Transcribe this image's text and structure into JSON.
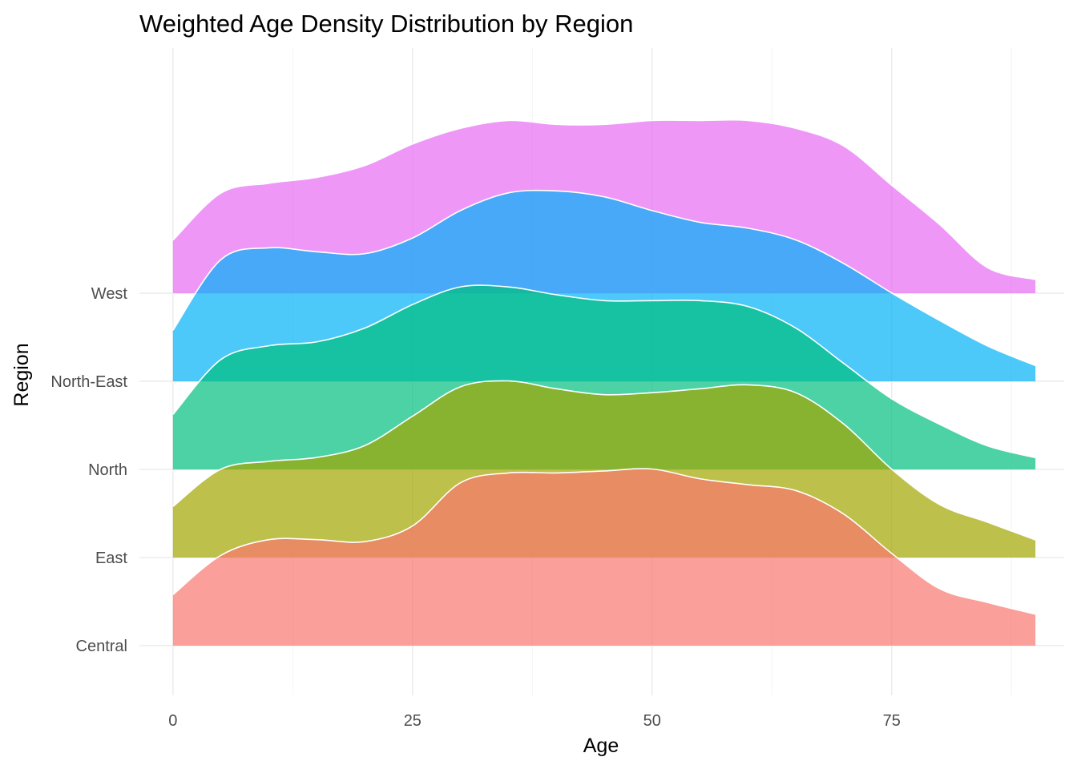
{
  "chart_data": {
    "type": "area",
    "subtype": "ridgeline",
    "title": "Weighted Age Density Distribution by Region",
    "xlabel": "Age",
    "ylabel": "Region",
    "xlim": [
      -3.5,
      93
    ],
    "x_ticks": [
      0,
      25,
      50,
      75
    ],
    "x_tick_labels": [
      "0",
      "25",
      "50",
      "75"
    ],
    "categories": [
      "Central",
      "East",
      "North",
      "North-East",
      "West"
    ],
    "grid": true,
    "legend": "none",
    "series": [
      {
        "name": "Central",
        "color": "#F8766D",
        "x": [
          0,
          5,
          10,
          15,
          20,
          25,
          30,
          35,
          40,
          45,
          50,
          55,
          60,
          65,
          70,
          75,
          80,
          85,
          90
        ],
        "y": [
          0.26,
          0.46,
          0.54,
          0.54,
          0.53,
          0.61,
          0.83,
          0.88,
          0.88,
          0.89,
          0.9,
          0.85,
          0.82,
          0.79,
          0.67,
          0.47,
          0.29,
          0.22,
          0.16
        ]
      },
      {
        "name": "East",
        "color": "#A3A500",
        "x": [
          0,
          5,
          10,
          15,
          20,
          25,
          30,
          35,
          40,
          45,
          50,
          55,
          60,
          65,
          70,
          75,
          80,
          85,
          90
        ],
        "y": [
          0.26,
          0.45,
          0.49,
          0.51,
          0.57,
          0.72,
          0.87,
          0.9,
          0.86,
          0.83,
          0.84,
          0.86,
          0.88,
          0.84,
          0.68,
          0.45,
          0.27,
          0.18,
          0.09
        ]
      },
      {
        "name": "North",
        "color": "#00BF7D",
        "x": [
          0,
          5,
          10,
          15,
          20,
          25,
          30,
          35,
          40,
          45,
          50,
          55,
          60,
          65,
          70,
          75,
          80,
          85,
          90
        ],
        "y": [
          0.28,
          0.56,
          0.63,
          0.65,
          0.72,
          0.84,
          0.93,
          0.93,
          0.89,
          0.86,
          0.86,
          0.86,
          0.83,
          0.72,
          0.54,
          0.36,
          0.23,
          0.12,
          0.06
        ]
      },
      {
        "name": "North-East",
        "color": "#00B0F6",
        "x": [
          0,
          5,
          10,
          15,
          20,
          25,
          30,
          35,
          40,
          45,
          50,
          55,
          60,
          65,
          70,
          75,
          80,
          85,
          90
        ],
        "y": [
          0.26,
          0.62,
          0.68,
          0.66,
          0.65,
          0.73,
          0.87,
          0.96,
          0.97,
          0.94,
          0.87,
          0.81,
          0.78,
          0.72,
          0.6,
          0.45,
          0.31,
          0.18,
          0.08
        ]
      },
      {
        "name": "West",
        "color": "#E76BF3",
        "x": [
          0,
          5,
          10,
          15,
          20,
          25,
          30,
          35,
          40,
          45,
          50,
          55,
          60,
          65,
          70,
          75,
          80,
          85,
          90
        ],
        "y": [
          0.27,
          0.51,
          0.56,
          0.59,
          0.65,
          0.76,
          0.84,
          0.88,
          0.86,
          0.86,
          0.88,
          0.88,
          0.88,
          0.84,
          0.75,
          0.55,
          0.35,
          0.13,
          0.07
        ]
      }
    ]
  }
}
